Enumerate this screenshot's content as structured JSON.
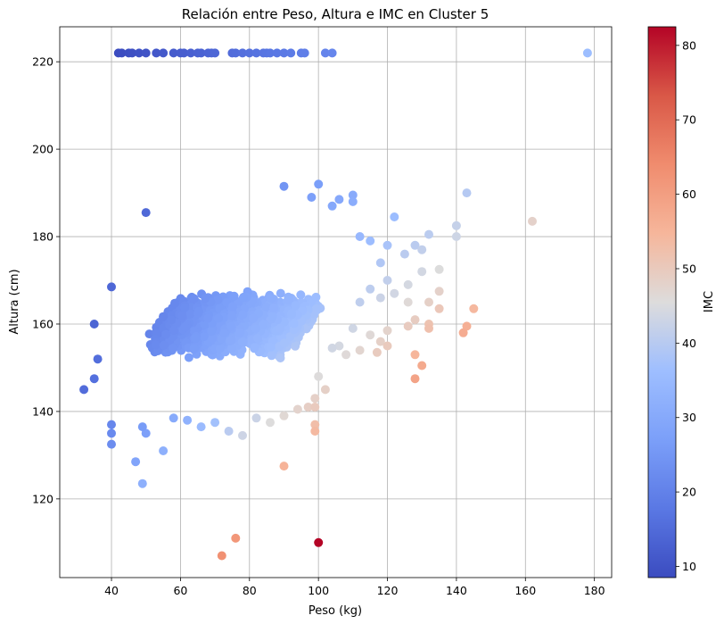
{
  "chart_data": {
    "type": "scatter",
    "title": "Relación entre Peso, Altura e IMC en Cluster 5",
    "xlabel": "Peso (kg)",
    "ylabel": "Altura (cm)",
    "xlim": [
      25,
      185
    ],
    "ylim": [
      102,
      228
    ],
    "xticks": [
      40,
      60,
      80,
      100,
      120,
      140,
      160,
      180
    ],
    "yticks": [
      120,
      140,
      160,
      180,
      200,
      220
    ],
    "grid": true,
    "colorbar": {
      "label": "IMC",
      "range": [
        8.5,
        82.5
      ],
      "ticks": [
        10,
        20,
        30,
        40,
        50,
        60,
        70,
        80
      ],
      "colormap": "coolwarm"
    },
    "cloud": {
      "description_of_dense_region": "dense cluster",
      "weight_range": [
        38,
        112
      ],
      "height_range": [
        138,
        182
      ]
    },
    "points": [
      {
        "x": 42,
        "y": 222
      },
      {
        "x": 43,
        "y": 222
      },
      {
        "x": 45,
        "y": 222
      },
      {
        "x": 46,
        "y": 222
      },
      {
        "x": 48,
        "y": 222
      },
      {
        "x": 50,
        "y": 222
      },
      {
        "x": 53,
        "y": 222
      },
      {
        "x": 55,
        "y": 222
      },
      {
        "x": 58,
        "y": 222
      },
      {
        "x": 60,
        "y": 222
      },
      {
        "x": 61,
        "y": 222
      },
      {
        "x": 63,
        "y": 222
      },
      {
        "x": 65,
        "y": 222
      },
      {
        "x": 66,
        "y": 222
      },
      {
        "x": 68,
        "y": 222
      },
      {
        "x": 69,
        "y": 222
      },
      {
        "x": 70,
        "y": 222
      },
      {
        "x": 75,
        "y": 222
      },
      {
        "x": 76,
        "y": 222
      },
      {
        "x": 78,
        "y": 222
      },
      {
        "x": 80,
        "y": 222
      },
      {
        "x": 82,
        "y": 222
      },
      {
        "x": 84,
        "y": 222
      },
      {
        "x": 85,
        "y": 222
      },
      {
        "x": 86,
        "y": 222
      },
      {
        "x": 88,
        "y": 222
      },
      {
        "x": 90,
        "y": 222
      },
      {
        "x": 92,
        "y": 222
      },
      {
        "x": 95,
        "y": 222
      },
      {
        "x": 96,
        "y": 222
      },
      {
        "x": 102,
        "y": 222
      },
      {
        "x": 104,
        "y": 222
      },
      {
        "x": 178,
        "y": 222
      },
      {
        "x": 50,
        "y": 185.5
      },
      {
        "x": 32,
        "y": 145
      },
      {
        "x": 35,
        "y": 160
      },
      {
        "x": 36,
        "y": 152
      },
      {
        "x": 35,
        "y": 147.5
      },
      {
        "x": 40,
        "y": 168.5
      },
      {
        "x": 40,
        "y": 137
      },
      {
        "x": 40,
        "y": 135
      },
      {
        "x": 40,
        "y": 132.5
      },
      {
        "x": 47,
        "y": 128.5
      },
      {
        "x": 49,
        "y": 123.5
      },
      {
        "x": 55,
        "y": 131
      },
      {
        "x": 50,
        "y": 135
      },
      {
        "x": 49,
        "y": 136.5
      },
      {
        "x": 90,
        "y": 191.5
      },
      {
        "x": 100,
        "y": 192
      },
      {
        "x": 98,
        "y": 189
      },
      {
        "x": 104,
        "y": 187
      },
      {
        "x": 106,
        "y": 188.5
      },
      {
        "x": 110,
        "y": 189.5
      },
      {
        "x": 110,
        "y": 188
      },
      {
        "x": 122,
        "y": 184.5
      },
      {
        "x": 143,
        "y": 190
      },
      {
        "x": 140,
        "y": 182.5
      },
      {
        "x": 140,
        "y": 180
      },
      {
        "x": 162,
        "y": 183.5
      },
      {
        "x": 112,
        "y": 180
      },
      {
        "x": 115,
        "y": 179
      },
      {
        "x": 120,
        "y": 178
      },
      {
        "x": 125,
        "y": 176
      },
      {
        "x": 128,
        "y": 178
      },
      {
        "x": 132,
        "y": 180.5
      },
      {
        "x": 130,
        "y": 177
      },
      {
        "x": 135,
        "y": 172.5
      },
      {
        "x": 130,
        "y": 172
      },
      {
        "x": 126,
        "y": 169
      },
      {
        "x": 120,
        "y": 170
      },
      {
        "x": 118,
        "y": 174
      },
      {
        "x": 115,
        "y": 168
      },
      {
        "x": 112,
        "y": 165
      },
      {
        "x": 118,
        "y": 166
      },
      {
        "x": 122,
        "y": 167
      },
      {
        "x": 126,
        "y": 165
      },
      {
        "x": 132,
        "y": 165
      },
      {
        "x": 135,
        "y": 163.5
      },
      {
        "x": 135,
        "y": 167.5
      },
      {
        "x": 128,
        "y": 161
      },
      {
        "x": 126,
        "y": 159.5
      },
      {
        "x": 132,
        "y": 160
      },
      {
        "x": 132,
        "y": 159
      },
      {
        "x": 143,
        "y": 159.5
      },
      {
        "x": 142,
        "y": 158
      },
      {
        "x": 145,
        "y": 163.5
      },
      {
        "x": 120,
        "y": 158.5
      },
      {
        "x": 118,
        "y": 156
      },
      {
        "x": 120,
        "y": 155
      },
      {
        "x": 115,
        "y": 157.5
      },
      {
        "x": 110,
        "y": 159
      },
      {
        "x": 112,
        "y": 154
      },
      {
        "x": 117,
        "y": 153.5
      },
      {
        "x": 108,
        "y": 153
      },
      {
        "x": 106,
        "y": 155
      },
      {
        "x": 104,
        "y": 154.5
      },
      {
        "x": 128,
        "y": 153
      },
      {
        "x": 130,
        "y": 150.5
      },
      {
        "x": 128,
        "y": 147.5
      },
      {
        "x": 100,
        "y": 148
      },
      {
        "x": 102,
        "y": 145
      },
      {
        "x": 99,
        "y": 143
      },
      {
        "x": 97,
        "y": 141
      },
      {
        "x": 99,
        "y": 141
      },
      {
        "x": 99,
        "y": 137
      },
      {
        "x": 99,
        "y": 135.5
      },
      {
        "x": 94,
        "y": 140.5
      },
      {
        "x": 90,
        "y": 139
      },
      {
        "x": 86,
        "y": 137.5
      },
      {
        "x": 82,
        "y": 138.5
      },
      {
        "x": 78,
        "y": 134.5
      },
      {
        "x": 74,
        "y": 135.5
      },
      {
        "x": 70,
        "y": 137.5
      },
      {
        "x": 66,
        "y": 136.5
      },
      {
        "x": 62,
        "y": 138
      },
      {
        "x": 58,
        "y": 138.5
      },
      {
        "x": 90,
        "y": 127.5
      },
      {
        "x": 72,
        "y": 107
      },
      {
        "x": 76,
        "y": 111
      },
      {
        "x": 100,
        "y": 110
      }
    ]
  }
}
